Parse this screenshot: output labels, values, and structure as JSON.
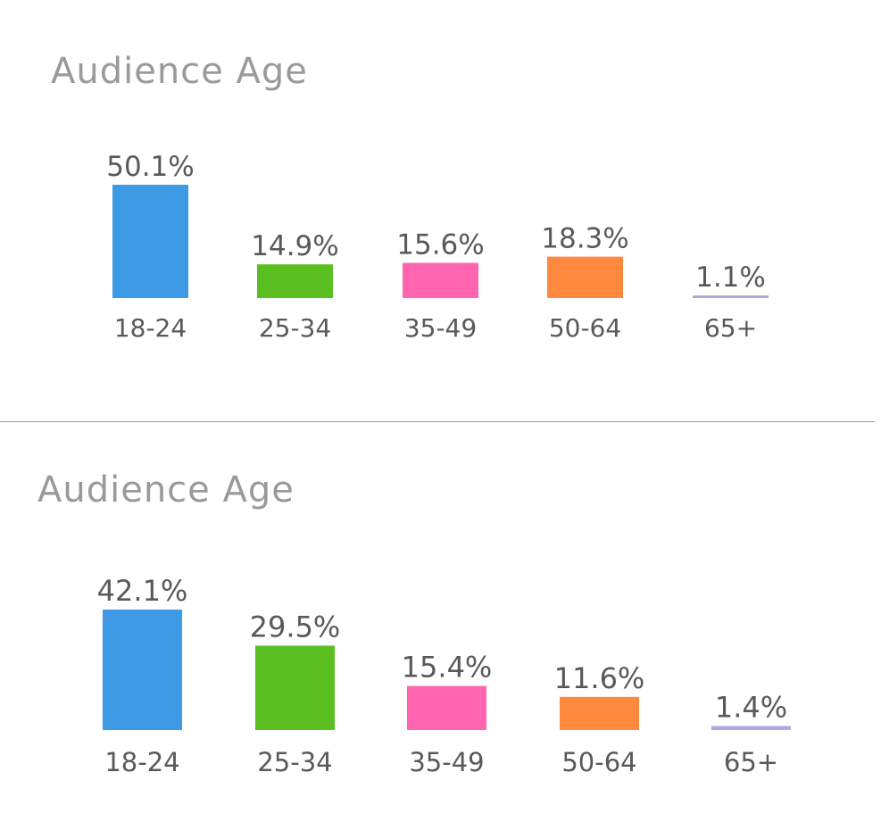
{
  "colors": {
    "title": "#9a9a9a",
    "label_text": "#595959",
    "divider": "#9e9e9e"
  },
  "chart_data": [
    {
      "type": "bar",
      "title": "Audience Age",
      "categories": [
        "18-24",
        "25-34",
        "35-49",
        "50-64",
        "65+"
      ],
      "values": [
        50.1,
        14.9,
        15.6,
        18.3,
        1.1
      ],
      "value_labels": [
        "50.1%",
        "14.9%",
        "15.6%",
        "18.3%",
        "1.1%"
      ],
      "bar_colors": [
        "#3f9ae5",
        "#5bbf22",
        "#ff64b1",
        "#ff8a3f",
        "#b4a5e0"
      ],
      "ylim": [
        0,
        50.1
      ],
      "grid": false,
      "legend": "none"
    },
    {
      "type": "bar",
      "title": "Audience Age",
      "categories": [
        "18-24",
        "25-34",
        "35-49",
        "50-64",
        "65+"
      ],
      "values": [
        42.1,
        29.5,
        15.4,
        11.6,
        1.4
      ],
      "value_labels": [
        "42.1%",
        "29.5%",
        "15.4%",
        "11.6%",
        "1.4%"
      ],
      "bar_colors": [
        "#3f9ae5",
        "#5bbf22",
        "#ff64b1",
        "#ff8a3f",
        "#b4a5e0"
      ],
      "ylim": [
        0,
        42.1
      ],
      "grid": false,
      "legend": "none"
    }
  ]
}
